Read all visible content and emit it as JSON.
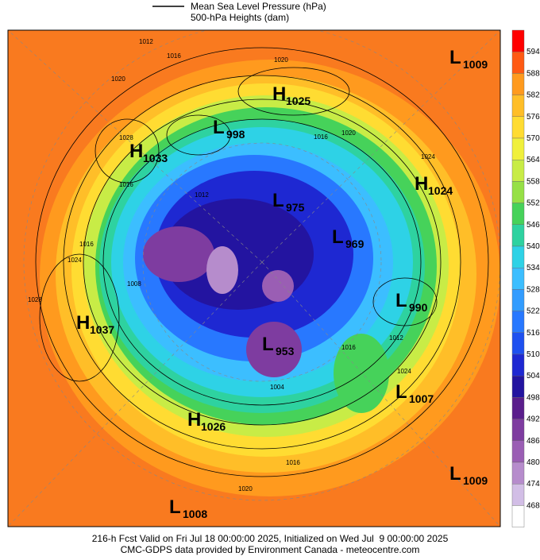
{
  "legend": [
    "Mean Sea Level Pressure (hPa)",
    "500-hPa Heights (dam)"
  ],
  "colorbar": {
    "levels": [
      594,
      588,
      582,
      576,
      570,
      564,
      558,
      552,
      546,
      540,
      534,
      528,
      522,
      516,
      510,
      504,
      498,
      492,
      486,
      480,
      474,
      468
    ],
    "colors": [
      "#ff0000",
      "#ff5a14",
      "#ff9a1e",
      "#ffbe28",
      "#ffdc32",
      "#f0f03c",
      "#c8ec46",
      "#96e046",
      "#46d25a",
      "#2ed2a0",
      "#2ed2e6",
      "#3cbeff",
      "#329cff",
      "#2878ff",
      "#1e50f0",
      "#1e28d2",
      "#2314a0",
      "#5a1e8c",
      "#7e3ca0",
      "#9a5eb4",
      "#b68ccc",
      "#d2bee6",
      "#ffffff"
    ]
  },
  "centers": [
    {
      "type": "L",
      "value": "1009"
    },
    {
      "type": "H",
      "value": "1025"
    },
    {
      "type": "L",
      "value": "998"
    },
    {
      "type": "H",
      "value": "1033"
    },
    {
      "type": "H",
      "value": "1024"
    },
    {
      "type": "L",
      "value": "975"
    },
    {
      "type": "L",
      "value": "969"
    },
    {
      "type": "L",
      "value": "990"
    },
    {
      "type": "H",
      "value": "1037"
    },
    {
      "type": "L",
      "value": "953"
    },
    {
      "type": "L",
      "value": "1007"
    },
    {
      "type": "H",
      "value": "1026"
    },
    {
      "type": "L",
      "value": "1009"
    },
    {
      "type": "L",
      "value": "1008"
    }
  ],
  "isobar_labels": [
    1012,
    1016,
    1020,
    1020,
    1028,
    1024,
    1016,
    1008,
    1012,
    1016,
    1020,
    1024,
    1028,
    1016,
    1016,
    1020,
    1016,
    1012,
    1024,
    1004
  ],
  "footer": [
    "216-h Fcst Valid on Fri Jul 18 00:00:00 2025, Initialized on Wed Jul  9 00:00:00 2025",
    "CMC-GDPS data provided by Environment Canada - meteocentre.com"
  ]
}
